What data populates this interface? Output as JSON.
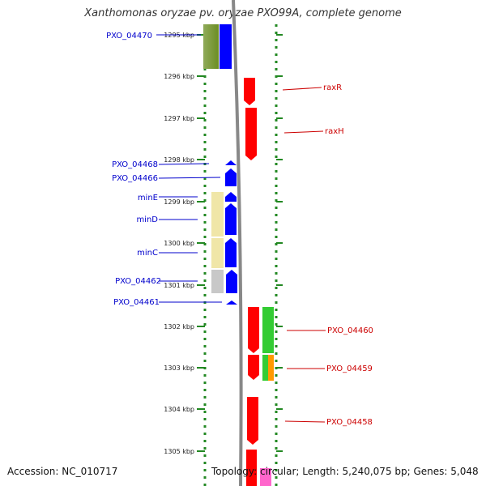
{
  "header": {
    "title": "Xanthomonas oryzae pv. oryzae PXO99A, complete genome"
  },
  "footer": {
    "accession": "Accession: NC_010717",
    "summary": "Topology: circular; Length: 5,240,075 bp; Genes: 5,048"
  },
  "ruler": {
    "ticks": [
      "1295 kbp",
      "1296 kbp",
      "1297 kbp",
      "1298 kbp",
      "1299 kbp",
      "1300 kbp",
      "1301 kbp",
      "1302 kbp",
      "1303 kbp",
      "1304 kbp",
      "1305 kbp"
    ]
  },
  "colors": {
    "reverse_strand": "#0000ff",
    "forward_strand": "#ff0000",
    "ruler_ticks": "#228822",
    "contig_line": "#888888"
  },
  "left_labels": [
    {
      "text": "PXO_04470",
      "color": "#0000cc"
    },
    {
      "text": "PXO_04468",
      "color": "#0000cc"
    },
    {
      "text": "PXO_04466",
      "color": "#0000cc"
    },
    {
      "text": "minE",
      "color": "#0000cc"
    },
    {
      "text": "minD",
      "color": "#0000cc"
    },
    {
      "text": "minC",
      "color": "#0000cc"
    },
    {
      "text": "PXO_04462",
      "color": "#0000cc"
    },
    {
      "text": "PXO_04461",
      "color": "#0000cc"
    }
  ],
  "right_labels": [
    {
      "text": "raxR",
      "color": "#cc0000"
    },
    {
      "text": "raxH",
      "color": "#cc0000"
    },
    {
      "text": "PXO_04460",
      "color": "#cc0000"
    },
    {
      "text": "PXO_04459",
      "color": "#cc0000"
    },
    {
      "text": "PXO_04458",
      "color": "#cc0000"
    }
  ]
}
